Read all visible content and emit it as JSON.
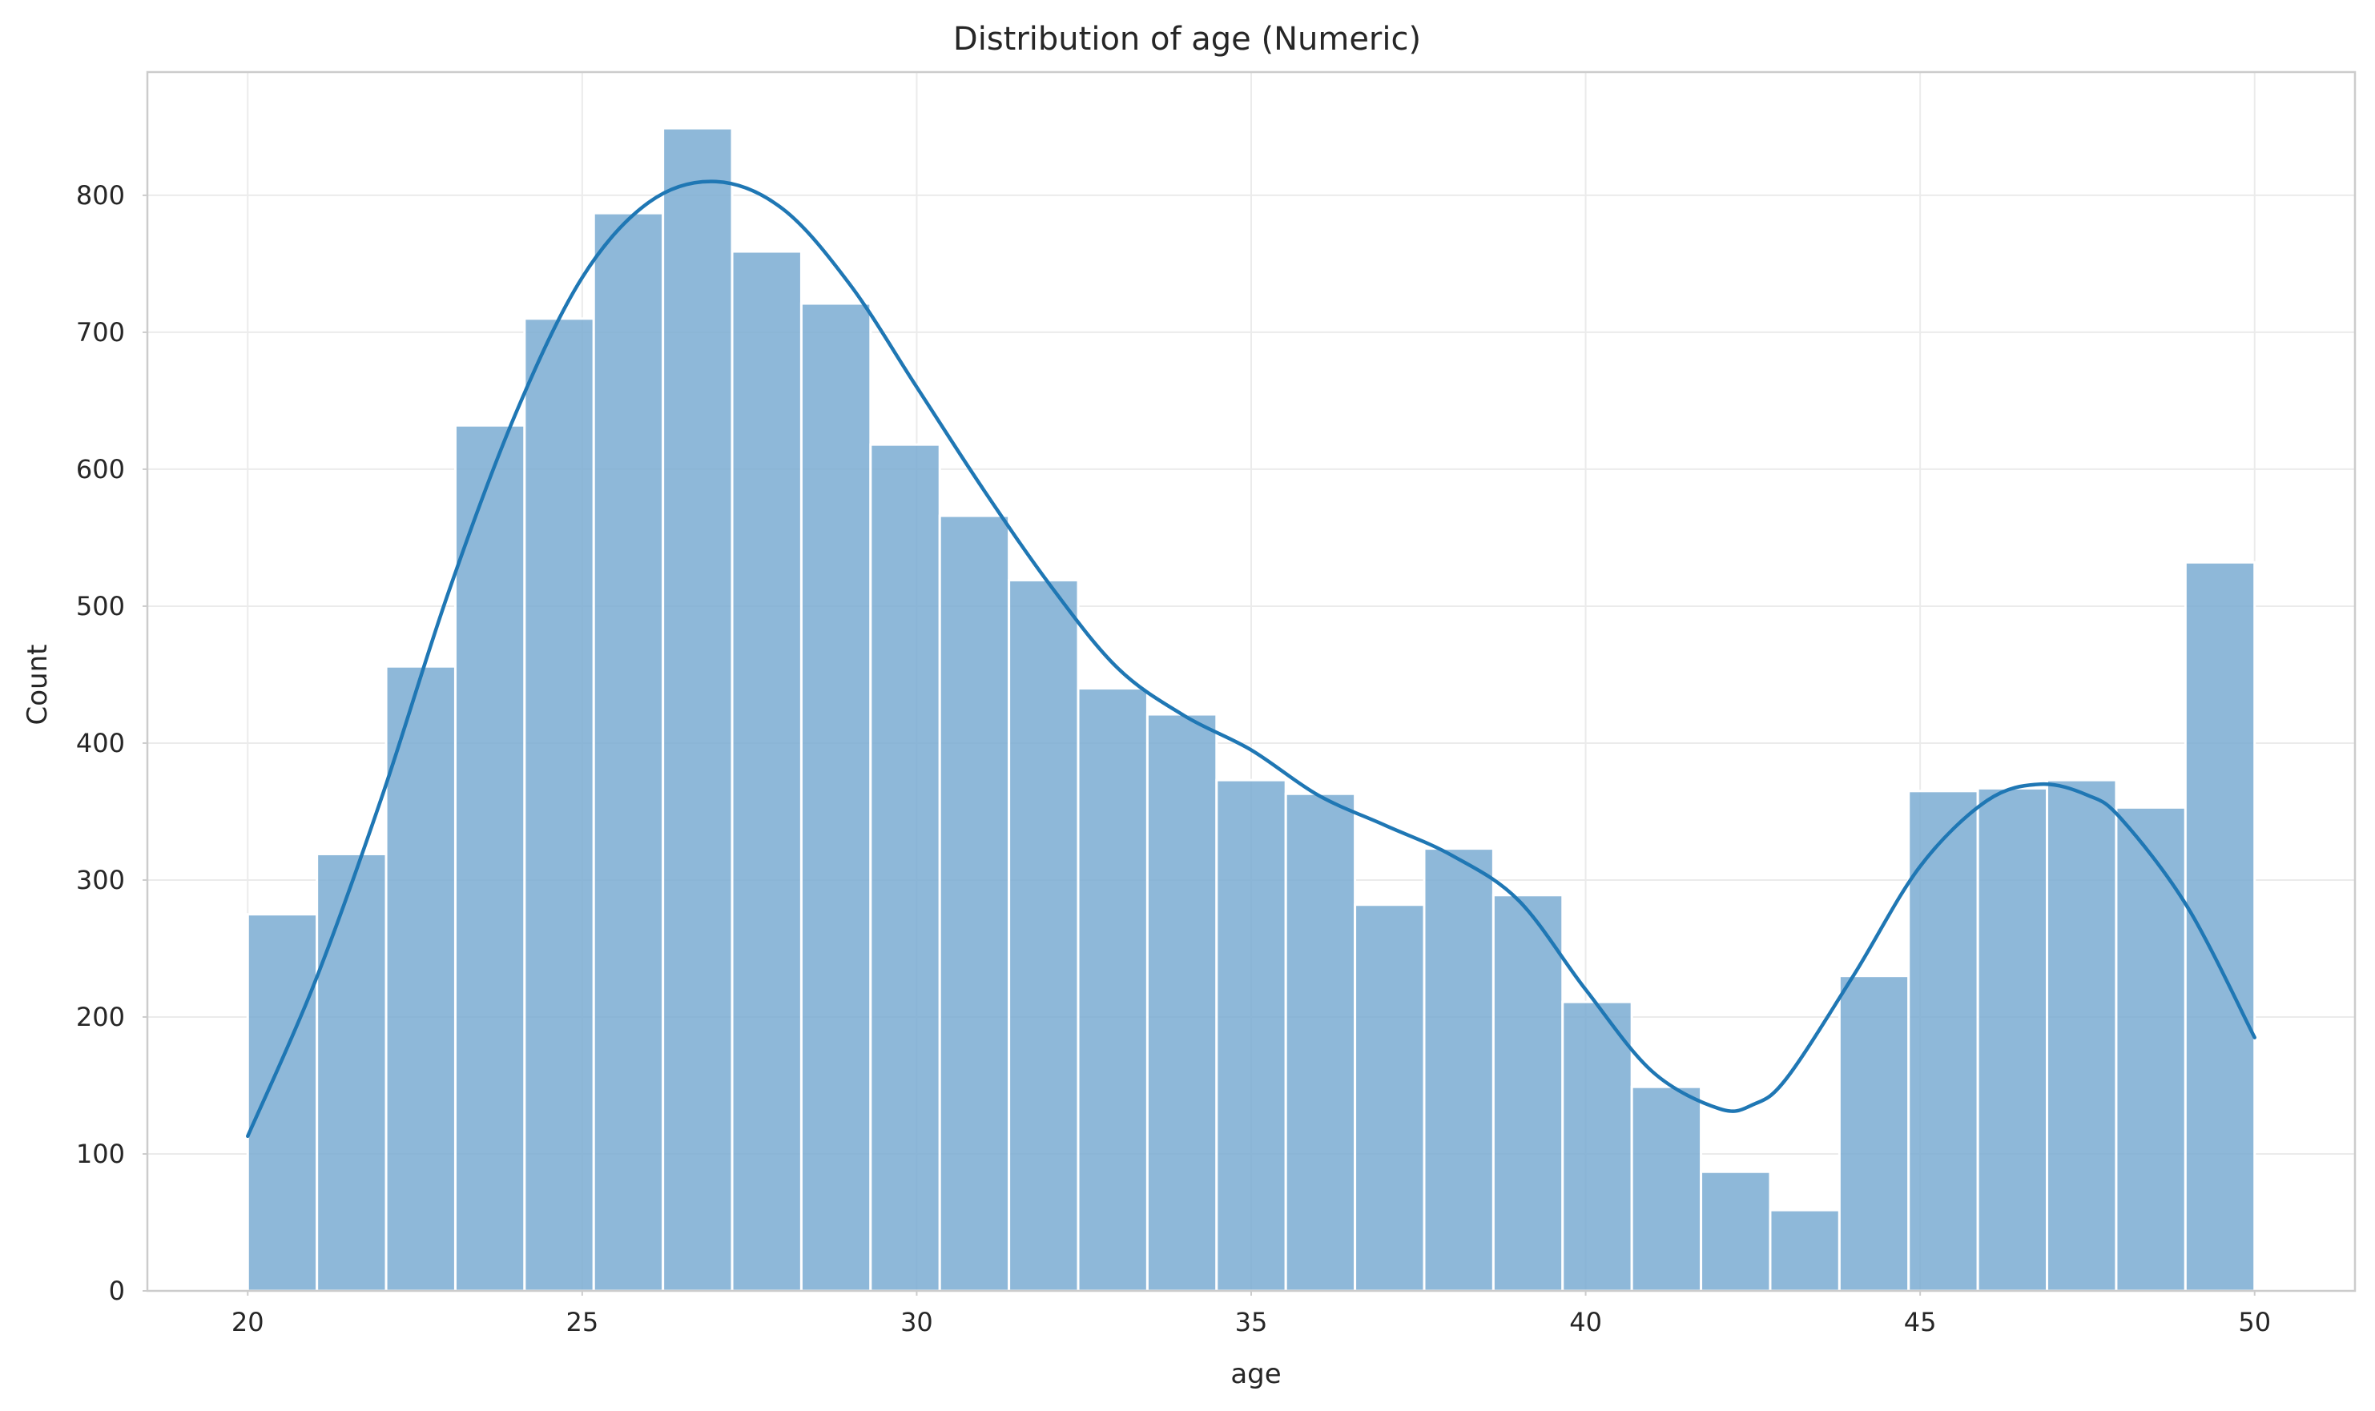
{
  "chart_data": {
    "type": "bar",
    "subtype": "histogram",
    "title": "Distribution of age (Numeric)",
    "xlabel": "age",
    "ylabel": "Count",
    "xlim": [
      18.5,
      51.5
    ],
    "ylim": [
      0,
      890
    ],
    "grid": true,
    "legend": "none",
    "bin_start": 20,
    "bin_end": 50,
    "bins": 29,
    "x_ticks": [
      20,
      25,
      30,
      35,
      40,
      45,
      50
    ],
    "y_ticks": [
      0,
      100,
      200,
      300,
      400,
      500,
      600,
      700,
      800
    ],
    "values": [
      275,
      319,
      456,
      632,
      710,
      787,
      849,
      759,
      721,
      618,
      566,
      519,
      440,
      421,
      373,
      363,
      282,
      323,
      289,
      211,
      149,
      87,
      59,
      230,
      365,
      367,
      373,
      353,
      532
    ],
    "kde_curve": {
      "x": [
        20,
        21,
        22,
        23,
        24,
        25,
        26,
        27,
        28,
        29,
        30,
        31,
        32,
        33,
        34,
        35,
        36,
        37,
        38,
        39,
        40,
        41,
        42,
        42.5,
        43,
        44,
        45,
        46,
        46.8,
        47.5,
        48,
        49,
        50
      ],
      "y": [
        113,
        225,
        360,
        510,
        640,
        740,
        795,
        810,
        790,
        735,
        660,
        585,
        515,
        455,
        420,
        395,
        362,
        340,
        318,
        285,
        220,
        160,
        133,
        136,
        155,
        230,
        310,
        358,
        370,
        362,
        345,
        280,
        185
      ]
    },
    "colors": {
      "bar": "#7aabd2",
      "kde": "#1f77b4",
      "grid": "#ebebeb",
      "frame": "#cccccc",
      "text": "#262626"
    }
  }
}
